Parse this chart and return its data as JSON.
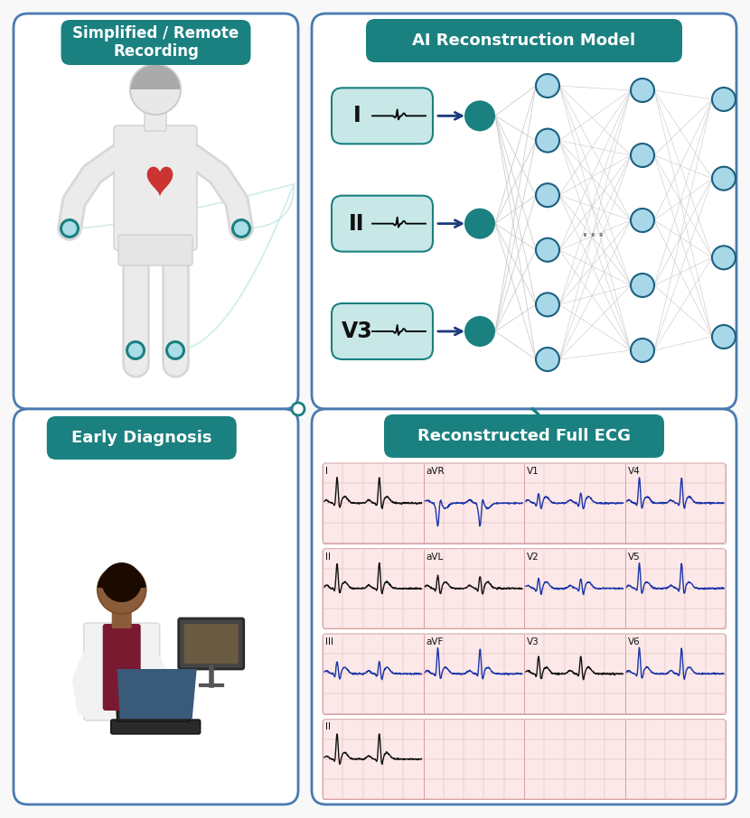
{
  "bg_color": "#f8f8f8",
  "teal_dark": "#1b8080",
  "teal_light": "#c8e8e8",
  "blue_node_dark": "#1b6080",
  "blue_node_light": "#a8d8e8",
  "border_blue": "#4a7ab0",
  "ecg_blue": "#1a35aa",
  "ecg_black": "#111111",
  "title_simplified": "Simplified / Remote\nRecording",
  "title_ai": "AI Reconstruction Model",
  "title_ecg": "Reconstructed Full ECG",
  "title_diag": "Early Diagnosis",
  "electrode_labels": [
    "I",
    "II",
    "V3"
  ],
  "row1_labels": [
    "I",
    "aVR",
    "V1",
    "V4"
  ],
  "row1_colors": [
    "black",
    "blue",
    "blue",
    "blue"
  ],
  "row2_labels": [
    "II",
    "aVL",
    "V2",
    "V5"
  ],
  "row2_colors": [
    "black",
    "black",
    "blue",
    "blue"
  ],
  "row3_labels": [
    "III",
    "aVF",
    "V3",
    "V6"
  ],
  "row3_colors": [
    "blue",
    "blue",
    "black",
    "blue"
  ],
  "row4_labels": [
    "II"
  ],
  "row4_colors": [
    "black"
  ]
}
